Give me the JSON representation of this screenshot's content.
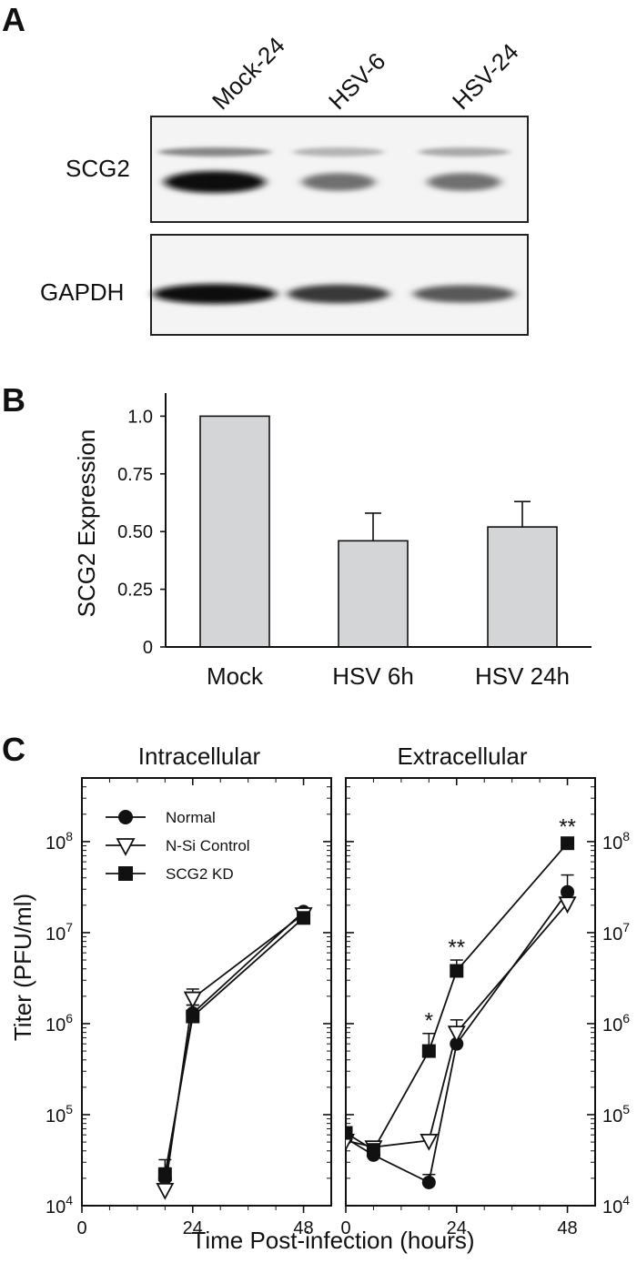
{
  "panels": {
    "a": {
      "letter": "A",
      "lanes": [
        "Mock-24",
        "HSV-6",
        "HSV-24"
      ],
      "blots": [
        {
          "name": "SCG2",
          "lower_band": [
            1.0,
            0.55,
            0.55
          ],
          "upper_band": [
            0.45,
            0.25,
            0.3
          ]
        },
        {
          "name": "GAPDH",
          "band": [
            1.0,
            0.8,
            0.65
          ]
        }
      ]
    },
    "b": {
      "letter": "B",
      "chart_data": {
        "type": "bar",
        "categories": [
          "Mock",
          "HSV 6h",
          "HSV 24h"
        ],
        "values": [
          1.0,
          0.46,
          0.52
        ],
        "errors": [
          0,
          0.12,
          0.11
        ],
        "ylabel": "SCG2 Expression",
        "ylim": [
          0,
          1.1
        ],
        "yticks": [
          "0",
          "0.25",
          "0.50",
          "0.75",
          "1.0"
        ],
        "ytick_values": [
          0,
          0.25,
          0.5,
          0.75,
          1.0
        ],
        "bar_color": "#d3d5d6"
      }
    },
    "c": {
      "letter": "C",
      "ylabel": "Titer (PFU/ml)",
      "xlabel": "Time Post-infection (hours)",
      "xticks": [
        "0",
        "24",
        "48"
      ],
      "xtick_values": [
        0,
        24,
        48
      ],
      "ytick_exps": [
        "4",
        "5",
        "6",
        "7",
        "8"
      ],
      "legend": [
        {
          "label": "Normal",
          "marker": "circle"
        },
        {
          "label": "N-Si Control",
          "marker": "triangle-down-open"
        },
        {
          "label": "SCG2 KD",
          "marker": "square"
        }
      ],
      "chart_data": [
        {
          "type": "line",
          "title": "Intracellular",
          "xlim": [
            0,
            54
          ],
          "ylog": true,
          "ylim": [
            10000,
            500000000
          ],
          "series": [
            {
              "name": "Normal",
              "x": [
                18,
                24,
                48
              ],
              "y": [
                20000,
                1300000,
                17000000
              ],
              "err": [
                6000,
                300000,
                1500000
              ]
            },
            {
              "name": "N-Si Control",
              "x": [
                18,
                24,
                48
              ],
              "y": [
                15000,
                1900000,
                16000000
              ],
              "err": [
                5000,
                500000,
                1500000
              ]
            },
            {
              "name": "SCG2 KD",
              "x": [
                18,
                24,
                48
              ],
              "y": [
                22000,
                1200000,
                14500000
              ],
              "err": [
                10000,
                400000,
                1500000
              ]
            }
          ]
        },
        {
          "type": "line",
          "title": "Extracellular",
          "xlim": [
            0,
            54
          ],
          "ylog": true,
          "ylim": [
            10000,
            500000000
          ],
          "series": [
            {
              "name": "Normal",
              "x": [
                0,
                6,
                18,
                24,
                48
              ],
              "y": [
                55000,
                36000,
                18000,
                600000,
                28000000
              ],
              "err": [
                10000,
                6000,
                4000,
                300000,
                15000000
              ]
            },
            {
              "name": "N-Si Control",
              "x": [
                0,
                6,
                18,
                24,
                48
              ],
              "y": [
                52000,
                44000,
                52000,
                800000,
                21000000
              ],
              "err": [
                8000,
                5000,
                8000,
                300000,
                5000000
              ]
            },
            {
              "name": "SCG2 KD",
              "x": [
                0,
                6,
                18,
                24,
                48
              ],
              "y": [
                63000,
                41000,
                500000,
                3800000,
                96000000
              ],
              "err": [
                10000,
                5000,
                280000,
                1200000,
                10000000
              ]
            }
          ],
          "annotations": [
            {
              "x": 18,
              "text": "*"
            },
            {
              "x": 24,
              "text": "**"
            },
            {
              "x": 48,
              "text": "**"
            }
          ]
        }
      ]
    }
  }
}
